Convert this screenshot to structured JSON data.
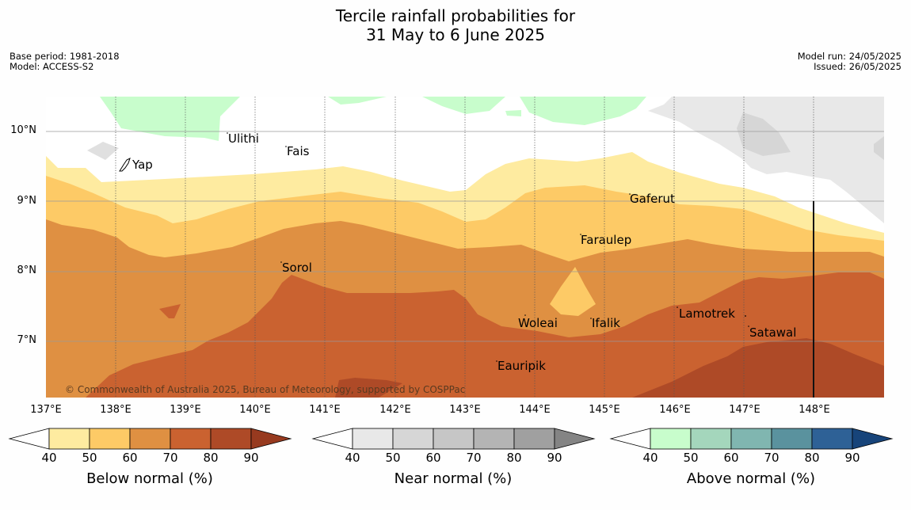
{
  "title": {
    "line1": "Tercile rainfall probabilities for",
    "line2": "31 May to 6 June 2025"
  },
  "meta": {
    "base_period": "Base period: 1981-2018",
    "model": "Model: ACCESS-S2",
    "model_run": "Model run: 24/05/2025",
    "issued": "Issued: 26/05/2025"
  },
  "latitudes": [
    "10°N",
    "9°N",
    "8°N",
    "7°N"
  ],
  "longitudes": [
    "137°E",
    "138°E",
    "139°E",
    "140°E",
    "141°E",
    "142°E",
    "143°E",
    "144°E",
    "145°E",
    "146°E",
    "147°E",
    "148°E"
  ],
  "places": [
    "Yap",
    "Ulithi",
    "Fais",
    "Gaferut",
    "Faraulep",
    "Sorol",
    "Woleai",
    "Ifalik",
    "Lamotrek",
    "Satawal",
    "Eauripik"
  ],
  "credit": "© Commonwealth of Australia 2025, Bureau of Meteorology, supported by COSPPac",
  "legends": [
    {
      "label": "Below normal (%)",
      "ticks": [
        "40",
        "50",
        "60",
        "70",
        "80",
        "90"
      ],
      "colors": [
        "#ffffff",
        "#feeba0",
        "#fdca66",
        "#df9042",
        "#ca6230",
        "#ae4a27",
        "#973a1f"
      ]
    },
    {
      "label": "Near normal (%)",
      "ticks": [
        "40",
        "50",
        "60",
        "70",
        "80",
        "90"
      ],
      "colors": [
        "#ffffff",
        "#e8e8e8",
        "#d6d6d6",
        "#c6c6c6",
        "#b4b4b4",
        "#a0a0a0",
        "#848484"
      ]
    },
    {
      "label": "Above normal (%)",
      "ticks": [
        "40",
        "50",
        "60",
        "70",
        "80",
        "90"
      ],
      "colors": [
        "#ffffff",
        "#c8fdcc",
        "#a4d6bc",
        "#80b6b0",
        "#5a929e",
        "#2e6196",
        "#17447a"
      ]
    }
  ]
}
